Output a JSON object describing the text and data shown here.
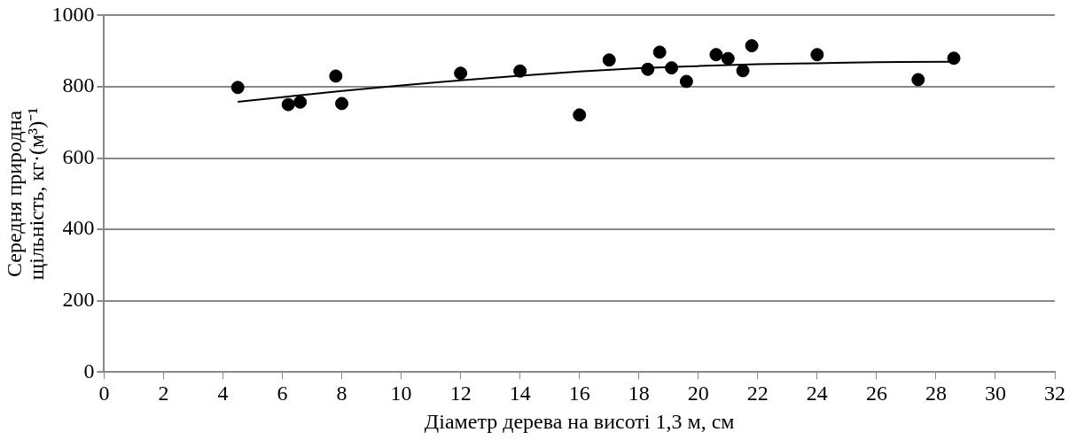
{
  "chart_data": {
    "type": "scatter",
    "xlabel": "Діаметр дерева на висоті 1,3 м, см",
    "ylabel": "Середня природна\nщільність, кг·(м³)⁻¹",
    "xlim": [
      0,
      32
    ],
    "xticks": [
      0,
      2,
      4,
      6,
      8,
      10,
      12,
      14,
      16,
      18,
      20,
      22,
      24,
      26,
      28,
      30,
      32
    ],
    "ylim": [
      0,
      1000
    ],
    "yticks": [
      0,
      200,
      400,
      600,
      800,
      1000
    ],
    "grid": "y",
    "marker": "circle",
    "series": [
      {
        "type": "scatter",
        "color": "#000000",
        "x": [
          4.5,
          6.2,
          6.6,
          7.8,
          8,
          12,
          14,
          16,
          17,
          18.3,
          18.7,
          19.1,
          19.6,
          20.6,
          21,
          21.5,
          21.8,
          24,
          27.4,
          28.6
        ],
        "values": [
          798,
          750,
          757,
          830,
          753,
          838,
          844,
          721,
          875,
          849,
          897,
          853,
          815,
          890,
          879,
          845,
          915,
          890,
          820,
          880
        ]
      },
      {
        "type": "line",
        "color": "#000000",
        "marker": "none",
        "x": [
          4.5,
          6,
          8,
          10,
          12,
          14,
          16,
          18,
          20,
          22,
          24,
          26,
          28.6
        ],
        "values": [
          758,
          771,
          788,
          804,
          818,
          831,
          843,
          852,
          858,
          863,
          866,
          869,
          870
        ]
      }
    ]
  }
}
